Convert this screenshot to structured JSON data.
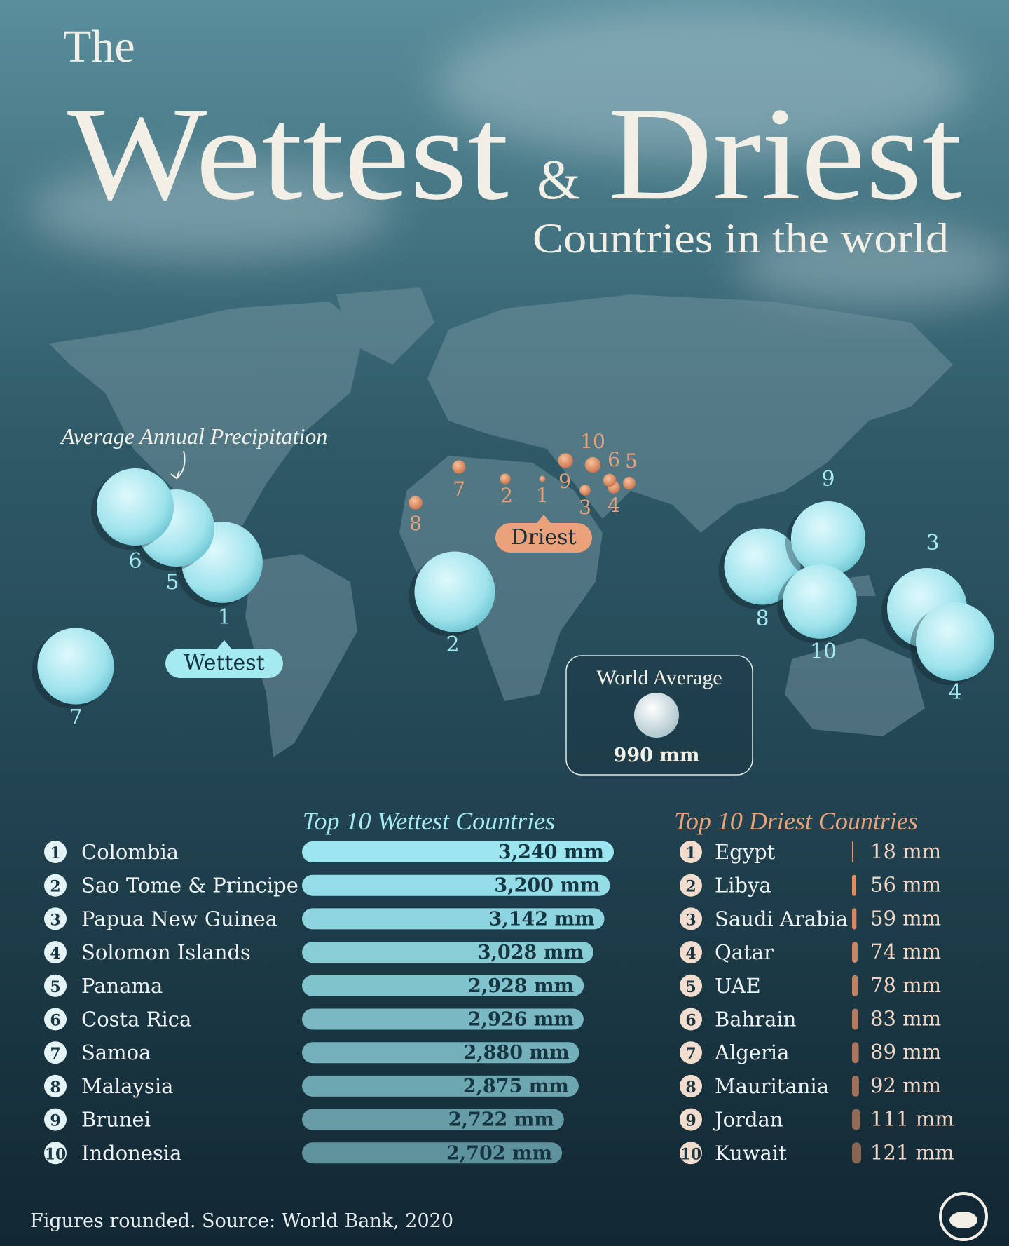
{
  "header": {
    "kicker": "The",
    "title_left": "Wettest",
    "ampersand": "&",
    "title_right": "Driest",
    "subtitle": "Countries in the world"
  },
  "map": {
    "legend_note": "Average Annual Precipitation",
    "wettest_tag": "Wettest",
    "driest_tag": "Driest",
    "world_average": {
      "label": "World Average",
      "value": 990,
      "value_label": "990 mm"
    }
  },
  "chart_data": [
    {
      "type": "bar",
      "orientation": "horizontal",
      "title": "Top 10 Wettest Countries",
      "rank_labels": [
        "1",
        "2",
        "3",
        "4",
        "5",
        "6",
        "7",
        "8",
        "9",
        "10"
      ],
      "categories": [
        "Colombia",
        "Sao Tome & Principe",
        "Papua New Guinea",
        "Solomon Islands",
        "Panama",
        "Costa Rica",
        "Samoa",
        "Malaysia",
        "Brunei",
        "Indonesia"
      ],
      "values": [
        3240,
        3200,
        3142,
        3028,
        2928,
        2926,
        2880,
        2875,
        2722,
        2702
      ],
      "value_labels": [
        "3,240 mm",
        "3,200 mm",
        "3,142 mm",
        "3,028 mm",
        "2,928 mm",
        "2,926 mm",
        "2,880 mm",
        "2,875 mm",
        "2,722 mm",
        "2,702 mm"
      ],
      "color": "#9be6ef"
    },
    {
      "type": "bar",
      "orientation": "horizontal",
      "title": "Top 10 Driest Countries",
      "rank_labels": [
        "1",
        "2",
        "3",
        "4",
        "5",
        "6",
        "7",
        "8",
        "9",
        "10"
      ],
      "categories": [
        "Egypt",
        "Libya",
        "Saudi Arabia",
        "Qatar",
        "UAE",
        "Bahrain",
        "Algeria",
        "Mauritania",
        "Jordan",
        "Kuwait"
      ],
      "values": [
        18,
        56,
        59,
        74,
        78,
        83,
        89,
        92,
        111,
        121
      ],
      "value_labels": [
        "18 mm",
        "56 mm",
        "59 mm",
        "74 mm",
        "78 mm",
        "83 mm",
        "89 mm",
        "92 mm",
        "111 mm",
        "121 mm"
      ],
      "color": "#e8936a"
    }
  ],
  "footer": {
    "source": "Figures rounded. Source: World Bank, 2020"
  }
}
